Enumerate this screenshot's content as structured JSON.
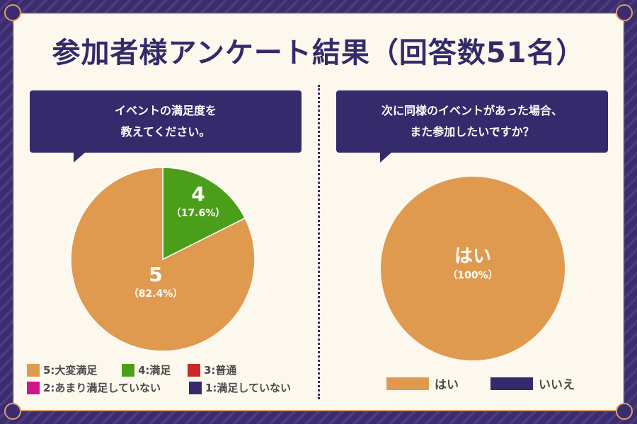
{
  "title": "参加者様アンケート結果（回答数51名）",
  "chart_data": [
    {
      "type": "pie",
      "title": "イベントの満足度を教えてください。",
      "categories": [
        "5:大変満足",
        "4:満足",
        "3:普通",
        "2:あまり満足していない",
        "1:満足していない"
      ],
      "values": [
        82.4,
        17.6,
        0,
        0,
        0
      ],
      "colors": [
        "#e09a4f",
        "#4a9e1a",
        "#c8282a",
        "#d1168a",
        "#352a6b"
      ],
      "slice_labels": [
        {
          "name": "5",
          "pct": "（82.4%）"
        },
        {
          "name": "4",
          "pct": "（17.6%）"
        }
      ],
      "legend": "bottom"
    },
    {
      "type": "pie",
      "title": "次に同様のイベントがあった場合、また参加したいですか？",
      "categories": [
        "はい",
        "いいえ"
      ],
      "values": [
        100,
        0
      ],
      "colors": [
        "#e09a4f",
        "#352a6b"
      ],
      "slice_labels": [
        {
          "name": "はい",
          "pct": "（100%）"
        }
      ],
      "legend": "bottom"
    }
  ],
  "q1_lines": [
    "イベントの満足度を",
    "教えてください。"
  ],
  "q2_lines": [
    "次に同様のイベントがあった場合、",
    "また参加したいですか？"
  ]
}
